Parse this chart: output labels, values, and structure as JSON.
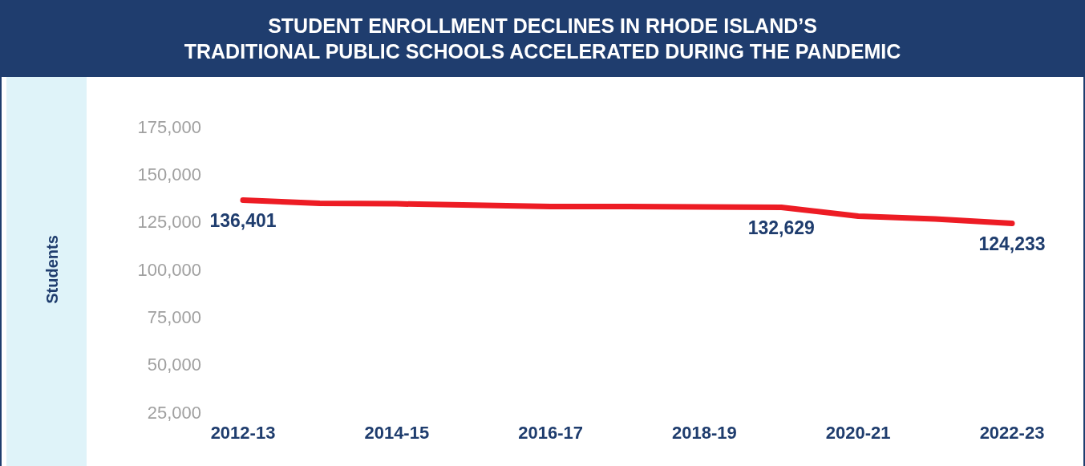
{
  "chart_data": {
    "type": "line",
    "title": "STUDENT ENROLLMENT DECLINES IN RHODE ISLAND’S\nTRADITIONAL PUBLIC SCHOOLS ACCELERATED DURING THE PANDEMIC",
    "ylabel": "Students",
    "categories": [
      "2012-13",
      null,
      "2014-15",
      null,
      "2016-17",
      null,
      "2018-19",
      null,
      "2020-21",
      null,
      "2022-23"
    ],
    "series": [
      {
        "color": "#ed1c24",
        "values": [
          136401,
          134800,
          134500,
          133800,
          133100,
          133100,
          132900,
          132629,
          128000,
          126500,
          124233
        ],
        "value_labels": [
          "136,401",
          null,
          null,
          null,
          null,
          null,
          null,
          "132,629",
          null,
          null,
          "124,233"
        ]
      }
    ],
    "ylim": [
      25000,
      175000
    ],
    "yticks": [
      {
        "value": 25000,
        "label": "25,000"
      },
      {
        "value": 50000,
        "label": "50,000"
      },
      {
        "value": 75000,
        "label": "75,000"
      },
      {
        "value": 100000,
        "label": "100,000"
      },
      {
        "value": 125000,
        "label": "125,000"
      },
      {
        "value": 150000,
        "label": "150,000"
      },
      {
        "value": 175000,
        "label": "175,000"
      }
    ],
    "grid": false,
    "marker": "none",
    "line_style": "solid"
  }
}
